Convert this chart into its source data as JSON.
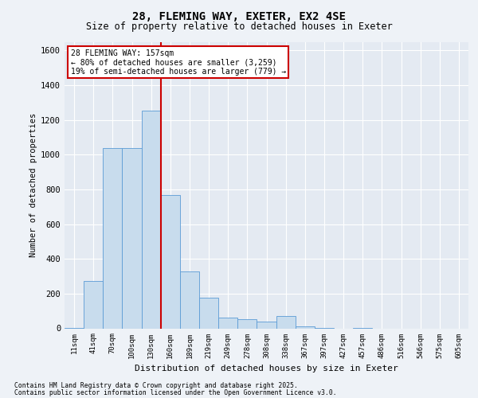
{
  "title_line1": "28, FLEMING WAY, EXETER, EX2 4SE",
  "title_line2": "Size of property relative to detached houses in Exeter",
  "xlabel": "Distribution of detached houses by size in Exeter",
  "ylabel": "Number of detached properties",
  "categories": [
    "11sqm",
    "41sqm",
    "70sqm",
    "100sqm",
    "130sqm",
    "160sqm",
    "189sqm",
    "219sqm",
    "249sqm",
    "278sqm",
    "308sqm",
    "338sqm",
    "367sqm",
    "397sqm",
    "427sqm",
    "457sqm",
    "486sqm",
    "516sqm",
    "546sqm",
    "575sqm",
    "605sqm"
  ],
  "values": [
    2,
    275,
    1040,
    1040,
    1255,
    770,
    330,
    175,
    60,
    55,
    40,
    70,
    10,
    3,
    0,
    2,
    0,
    0,
    0,
    0,
    0
  ],
  "bar_color": "#c8dced",
  "bar_edge_color": "#5b9bd5",
  "property_line_bin": 5,
  "annotation_text": "28 FLEMING WAY: 157sqm\n← 80% of detached houses are smaller (3,259)\n19% of semi-detached houses are larger (779) →",
  "ylim": [
    0,
    1650
  ],
  "yticks": [
    0,
    200,
    400,
    600,
    800,
    1000,
    1200,
    1400,
    1600
  ],
  "footer_line1": "Contains HM Land Registry data © Crown copyright and database right 2025.",
  "footer_line2": "Contains public sector information licensed under the Open Government Licence v3.0.",
  "background_color": "#eef2f7",
  "plot_bg_color": "#e4eaf2",
  "grid_color": "#ffffff",
  "annotation_box_color": "#ffffff",
  "annotation_box_edge": "#cc0000",
  "red_line_color": "#cc0000"
}
